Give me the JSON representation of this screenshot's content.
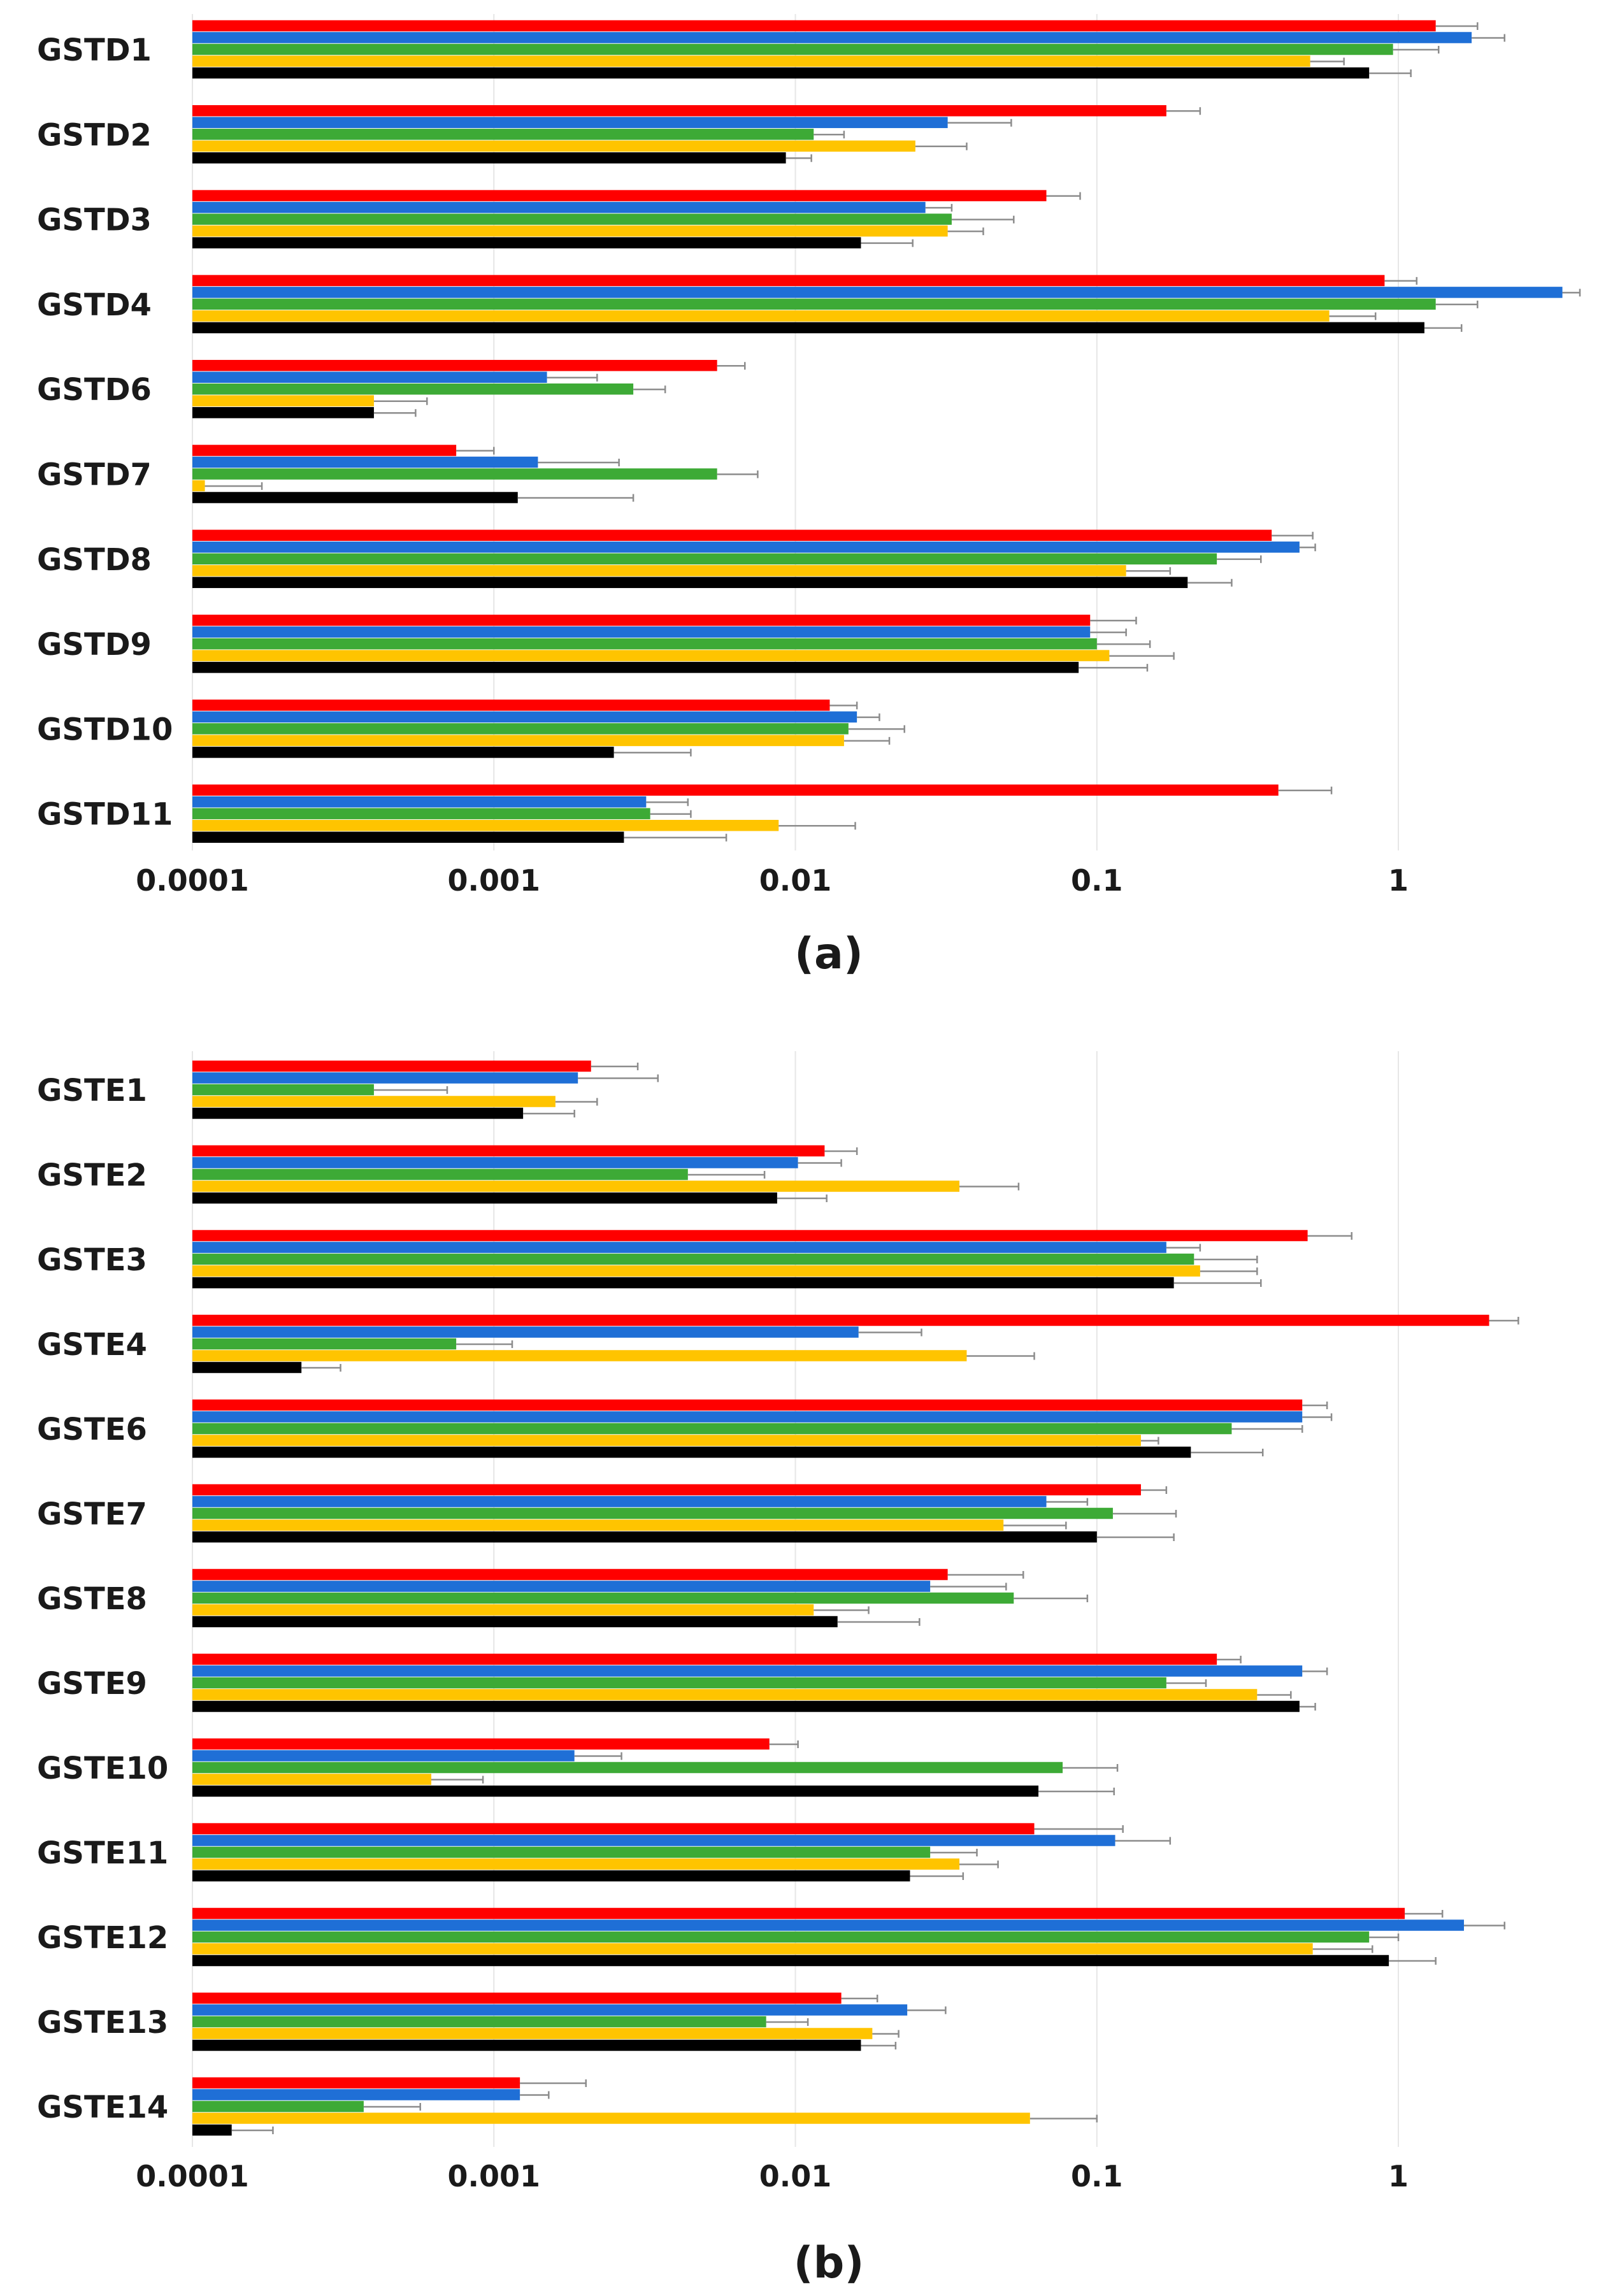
{
  "colors": [
    "#ff0000",
    "#1f6fd6",
    "#3daa36",
    "#ffc400",
    "#000000"
  ],
  "chart_data": [
    {
      "type": "bar",
      "orientation": "horizontal",
      "panel_label": "(a)",
      "xscale": "log",
      "xlim": [
        0.0001,
        4
      ],
      "xticks": [
        "0.0001",
        "0.001",
        "0.01",
        "0.1",
        "1"
      ],
      "xtick_values": [
        0.0001,
        0.001,
        0.01,
        0.1,
        1
      ],
      "grid": true,
      "categories": [
        "GSTD1",
        "GSTD2",
        "GSTD3",
        "GSTD4",
        "GSTD6",
        "GSTD7",
        "GSTD8",
        "GSTD9",
        "GSTD10",
        "GSTD11"
      ],
      "series": [
        {
          "color": "#ff0000",
          "values": [
            1.33,
            0.17,
            0.068,
            0.9,
            0.0055,
            0.00075,
            0.38,
            0.095,
            0.013,
            0.4
          ],
          "errors": [
            0.5,
            0.05,
            0.02,
            0.25,
            0.0013,
            0.00025,
            0.14,
            0.04,
            0.003,
            0.2
          ]
        },
        {
          "color": "#1f6fd6",
          "values": [
            1.75,
            0.032,
            0.027,
            3.5,
            0.0015,
            0.0014,
            0.47,
            0.095,
            0.016,
            0.0032
          ],
          "errors": [
            0.5,
            0.02,
            0.006,
            1.0,
            0.0007,
            0.0012,
            0.06,
            0.03,
            0.003,
            0.0012
          ]
        },
        {
          "color": "#3daa36",
          "values": [
            0.96,
            0.0115,
            0.033,
            1.33,
            0.0029,
            0.0055,
            0.25,
            0.1,
            0.015,
            0.0033
          ],
          "errors": [
            0.4,
            0.003,
            0.02,
            0.5,
            0.0008,
            0.002,
            0.1,
            0.05,
            0.008,
            0.0012
          ]
        },
        {
          "color": "#ffc400",
          "values": [
            0.51,
            0.025,
            0.032,
            0.59,
            0.0004,
            0.00011,
            0.125,
            0.11,
            0.0145,
            0.0088
          ],
          "errors": [
            0.15,
            0.012,
            0.01,
            0.25,
            0.0002,
            6e-05,
            0.05,
            0.07,
            0.006,
            0.007
          ]
        },
        {
          "color": "#000000",
          "values": [
            0.8,
            0.0093,
            0.0165,
            1.22,
            0.0004,
            0.0012,
            0.2,
            0.087,
            0.0025,
            0.0027
          ],
          "errors": [
            0.3,
            0.002,
            0.008,
            0.4,
            0.00015,
            0.0017,
            0.08,
            0.06,
            0.002,
            0.0032
          ]
        }
      ]
    },
    {
      "type": "bar",
      "orientation": "horizontal",
      "panel_label": "(b)",
      "xscale": "log",
      "xlim": [
        0.0001,
        4
      ],
      "xticks": [
        "0.0001",
        "0.001",
        "0.01",
        "0.1",
        "1"
      ],
      "xtick_values": [
        0.0001,
        0.001,
        0.01,
        0.1,
        1
      ],
      "grid": true,
      "categories": [
        "GSTE1",
        "GSTE2",
        "GSTE3",
        "GSTE4",
        "GSTE6",
        "GSTE7",
        "GSTE8",
        "GSTE9",
        "GSTE10",
        "GSTE11",
        "GSTE12",
        "GSTE13",
        "GSTE14"
      ],
      "series": [
        {
          "color": "#ff0000",
          "values": [
            0.0021,
            0.0125,
            0.5,
            2.0,
            0.48,
            0.14,
            0.032,
            0.25,
            0.0082,
            0.062,
            1.05,
            0.0142,
            0.00122
          ],
          "errors": [
            0.0009,
            0.0035,
            0.2,
            0.5,
            0.1,
            0.03,
            0.025,
            0.05,
            0.002,
            0.06,
            0.35,
            0.0045,
            0.0008
          ]
        },
        {
          "color": "#1f6fd6",
          "values": [
            0.0019,
            0.0102,
            0.17,
            0.0162,
            0.48,
            0.068,
            0.028,
            0.48,
            0.00185,
            0.115,
            1.65,
            0.0235,
            0.00122
          ],
          "errors": [
            0.0016,
            0.004,
            0.05,
            0.01,
            0.12,
            0.025,
            0.022,
            0.1,
            0.0008,
            0.06,
            0.6,
            0.008,
            0.0003
          ]
        },
        {
          "color": "#3daa36",
          "values": [
            0.0004,
            0.0044,
            0.21,
            0.00075,
            0.28,
            0.113,
            0.053,
            0.17,
            0.077,
            0.028,
            0.8,
            0.008,
            0.00037
          ],
          "errors": [
            0.0003,
            0.0035,
            0.13,
            0.0004,
            0.2,
            0.07,
            0.04,
            0.06,
            0.04,
            0.012,
            0.2,
            0.003,
            0.0002
          ]
        },
        {
          "color": "#ffc400",
          "values": [
            0.0016,
            0.035,
            0.22,
            0.037,
            0.14,
            0.049,
            0.0115,
            0.34,
            0.00062,
            0.035,
            0.52,
            0.018,
            0.06
          ],
          "errors": [
            0.0006,
            0.02,
            0.12,
            0.025,
            0.02,
            0.03,
            0.006,
            0.1,
            0.0003,
            0.012,
            0.3,
            0.004,
            0.04
          ]
        },
        {
          "color": "#000000",
          "values": [
            0.00125,
            0.0087,
            0.18,
            0.00023,
            0.205,
            0.1,
            0.0138,
            0.47,
            0.064,
            0.024,
            0.93,
            0.0165,
            0.000135
          ],
          "errors": [
            0.0006,
            0.004,
            0.17,
            8e-05,
            0.15,
            0.08,
            0.012,
            0.06,
            0.05,
            0.012,
            0.4,
            0.005,
            5e-05
          ]
        }
      ]
    }
  ]
}
